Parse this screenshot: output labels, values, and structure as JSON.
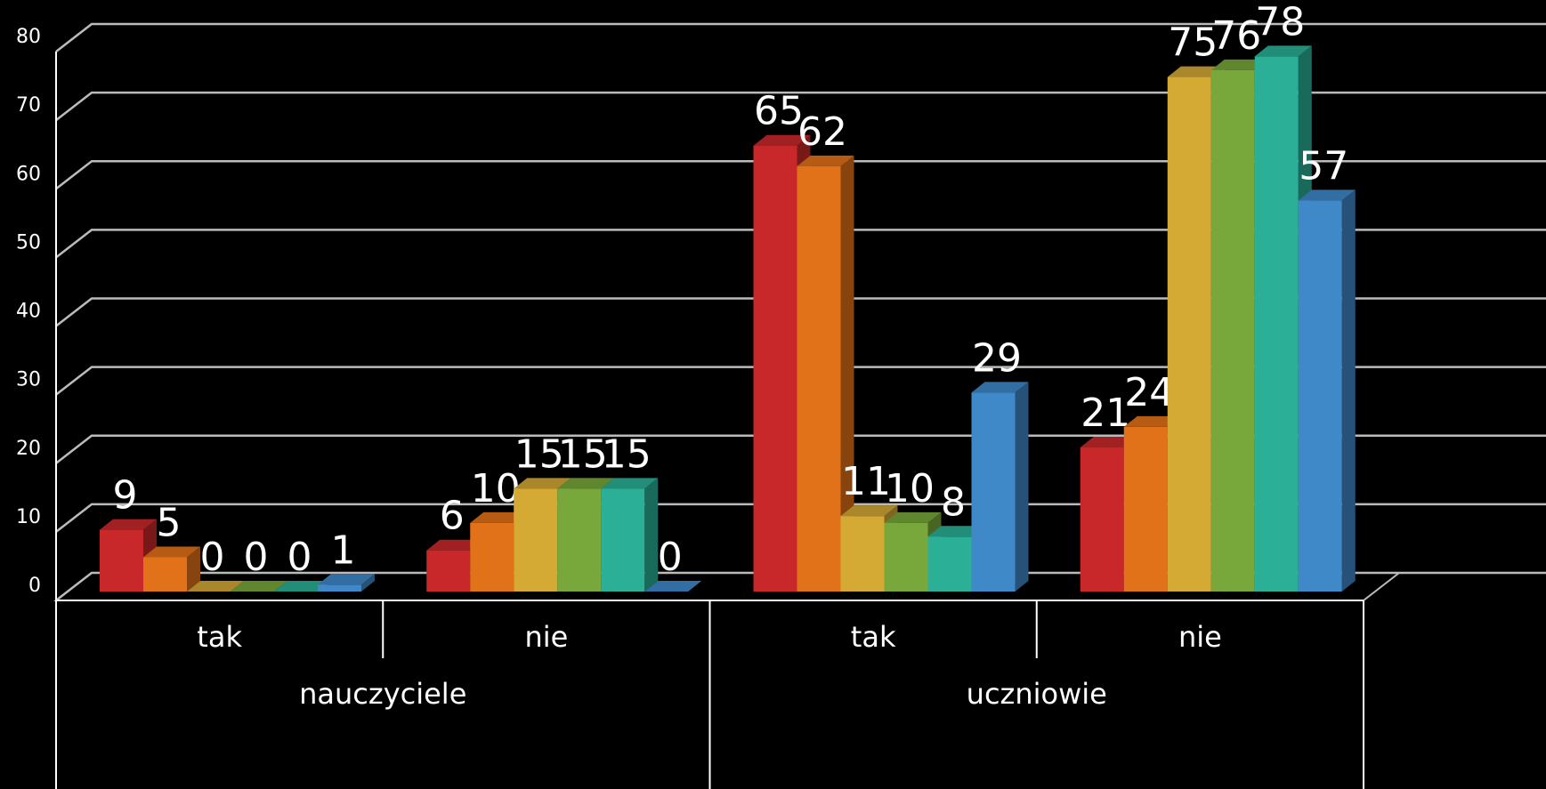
{
  "chart_data": {
    "type": "bar3d",
    "categories": [
      "tak",
      "nie",
      "tak",
      "nie"
    ],
    "groups": [
      "nauczyciele",
      "uczniowie"
    ],
    "series": [
      {
        "color": "#c9282a",
        "values": [
          9,
          6,
          65,
          21
        ]
      },
      {
        "color": "#e27219",
        "values": [
          5,
          10,
          62,
          24
        ]
      },
      {
        "color": "#d4a934",
        "values": [
          0,
          15,
          11,
          75
        ]
      },
      {
        "color": "#78a83b",
        "values": [
          0,
          15,
          10,
          76
        ]
      },
      {
        "color": "#2bb097",
        "values": [
          0,
          15,
          8,
          78
        ]
      },
      {
        "color": "#3f89c9",
        "values": [
          1,
          0,
          29,
          57
        ]
      }
    ],
    "ylim": [
      0,
      80
    ],
    "yticks": [
      0,
      10,
      20,
      30,
      40,
      50,
      60,
      70,
      80
    ],
    "grid": true
  }
}
